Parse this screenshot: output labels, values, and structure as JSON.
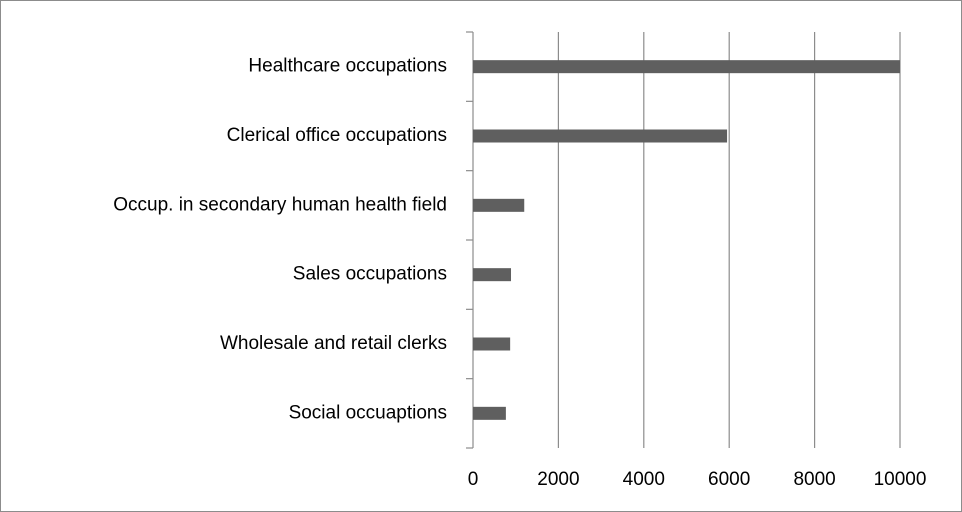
{
  "chart_data": {
    "type": "hbar",
    "categories": [
      "Healthcare occupations",
      "Clerical office occupations",
      "Occup. in secondary human health field",
      "Sales occupations",
      "Wholesale and retail clerks",
      "Social occuaptions"
    ],
    "values": [
      10000,
      5950,
      1200,
      890,
      870,
      770
    ],
    "color": "#5f5f5f",
    "xlim": [
      0,
      10000
    ],
    "xticks": [
      0,
      2000,
      4000,
      6000,
      8000,
      10000
    ],
    "grid": true
  }
}
